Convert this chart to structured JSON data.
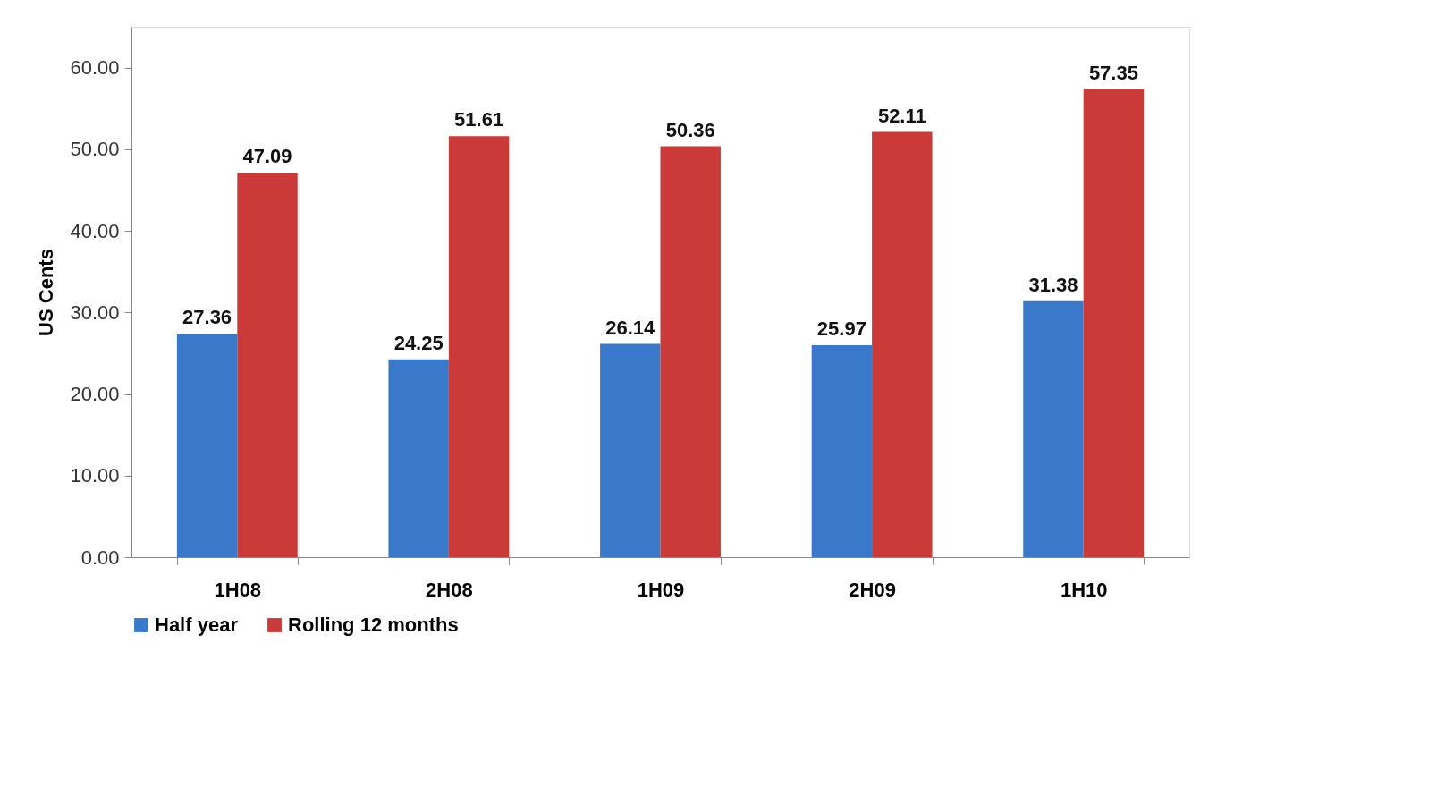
{
  "chart_data": {
    "type": "bar",
    "ylabel": "US Cents",
    "categories": [
      "1H08",
      "2H08",
      "1H09",
      "2H09",
      "1H10"
    ],
    "series": [
      {
        "name": "Half year",
        "color": "#3a78c9",
        "values": [
          27.36,
          24.25,
          26.14,
          25.97,
          31.38
        ]
      },
      {
        "name": "Rolling 12 months",
        "color": "#c93a38",
        "values": [
          47.09,
          51.61,
          50.36,
          52.11,
          57.35
        ]
      }
    ],
    "ylim": [
      0,
      65
    ],
    "yticks": [
      {
        "value": 0,
        "label": "0.00"
      },
      {
        "value": 10,
        "label": "10.00"
      },
      {
        "value": 20,
        "label": "20.00"
      },
      {
        "value": 30,
        "label": "30.00"
      },
      {
        "value": 40,
        "label": "40.00"
      },
      {
        "value": 50,
        "label": "50.00"
      },
      {
        "value": 60,
        "label": "60.00"
      }
    ],
    "data_labels": true,
    "legend": "bottom",
    "grid": false
  }
}
